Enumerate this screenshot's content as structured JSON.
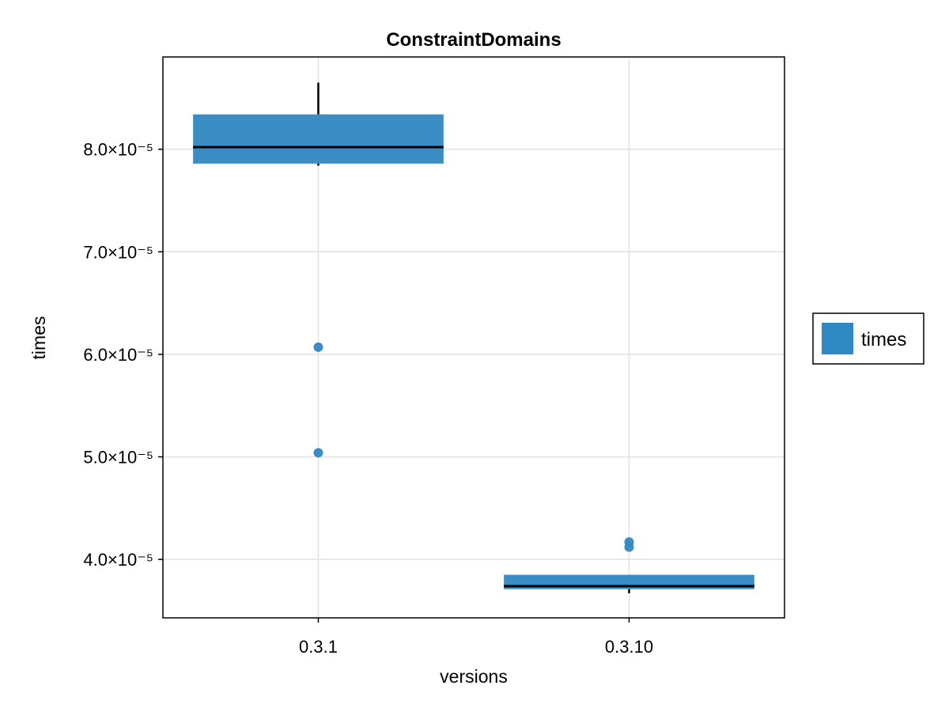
{
  "chart_data": {
    "type": "box",
    "title": "ConstraintDomains",
    "xlabel": "versions",
    "ylabel": "times",
    "categories": [
      "0.3.1",
      "0.3.10"
    ],
    "ylim": [
      3.43e-05,
      8.9e-05
    ],
    "y_ticks": [
      {
        "value": 4e-05,
        "label": "4.0×10⁻⁵"
      },
      {
        "value": 5e-05,
        "label": "5.0×10⁻⁵"
      },
      {
        "value": 6e-05,
        "label": "6.0×10⁻⁵"
      },
      {
        "value": 7e-05,
        "label": "7.0×10⁻⁵"
      },
      {
        "value": 8e-05,
        "label": "8.0×10⁻⁵"
      }
    ],
    "grid": true,
    "legend": {
      "position": "right",
      "entries": [
        {
          "name": "times",
          "color": "#2f88c2"
        }
      ]
    },
    "series": [
      {
        "name": "times",
        "color": "#2f88c2",
        "boxes": [
          {
            "category": "0.3.1",
            "whisker_low": 7.84e-05,
            "q1": 7.86e-05,
            "median": 8.02e-05,
            "q3": 8.34e-05,
            "whisker_high": 8.65e-05,
            "outliers": [
              6.07e-05,
              5.04e-05
            ]
          },
          {
            "category": "0.3.10",
            "whisker_low": 3.67e-05,
            "q1": 3.71e-05,
            "median": 3.74e-05,
            "q3": 3.85e-05,
            "whisker_high": 3.85e-05,
            "outliers": [
              4.17e-05,
              4.12e-05
            ]
          }
        ]
      }
    ]
  }
}
